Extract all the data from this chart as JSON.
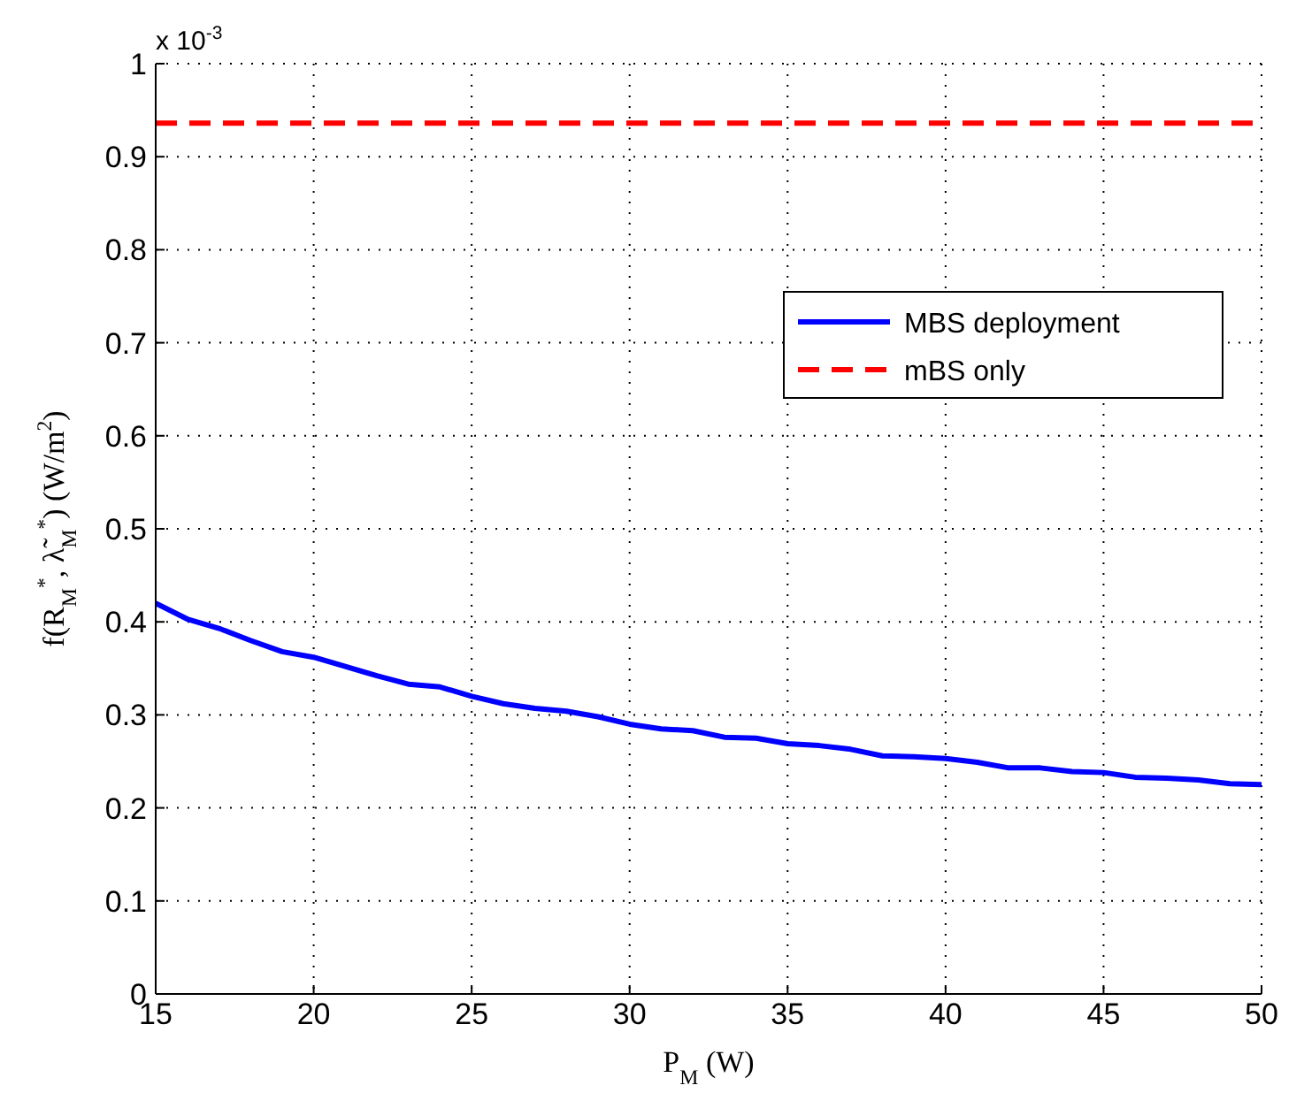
{
  "chart_data": {
    "type": "line",
    "xlabel": "P$_{M}$ (W)",
    "ylabel": "f(R$_{M}$$^{*}$, λ̃$_{M}$$^{*}$) (W/m$^{2}$)",
    "annotations": [
      "x 10$^{-3}$"
    ],
    "xlim": [
      15,
      50
    ],
    "xticks": [
      15,
      20,
      25,
      30,
      35,
      40,
      45,
      50
    ],
    "ylim": [
      0,
      1
    ],
    "yticks": [
      0,
      0.1,
      0.2,
      0.3,
      0.4,
      0.5,
      0.6,
      0.7,
      0.8,
      0.9,
      1
    ],
    "grid": true,
    "legend": "right",
    "series": [
      {
        "name": "MBS deployment",
        "color": "#0000ff",
        "line_style": "solid",
        "x": [
          15,
          16,
          17,
          18,
          19,
          20,
          21,
          22,
          23,
          24,
          25,
          26,
          27,
          28,
          29,
          30,
          31,
          32,
          33,
          34,
          35,
          36,
          37,
          38,
          39,
          40,
          41,
          42,
          43,
          44,
          45,
          46,
          47,
          48,
          49,
          50
        ],
        "values": [
          0.42,
          0.403,
          0.393,
          0.38,
          0.368,
          0.362,
          0.352,
          0.342,
          0.333,
          0.33,
          0.32,
          0.312,
          0.307,
          0.304,
          0.298,
          0.29,
          0.285,
          0.283,
          0.276,
          0.275,
          0.269,
          0.267,
          0.263,
          0.256,
          0.255,
          0.253,
          0.249,
          0.243,
          0.243,
          0.239,
          0.238,
          0.233,
          0.232,
          0.23,
          0.226,
          0.225
        ]
      },
      {
        "name": "mBS only",
        "color": "#ff0000",
        "line_style": "dashed",
        "x": [
          15,
          50
        ],
        "values": [
          0.936,
          0.936
        ]
      }
    ]
  }
}
